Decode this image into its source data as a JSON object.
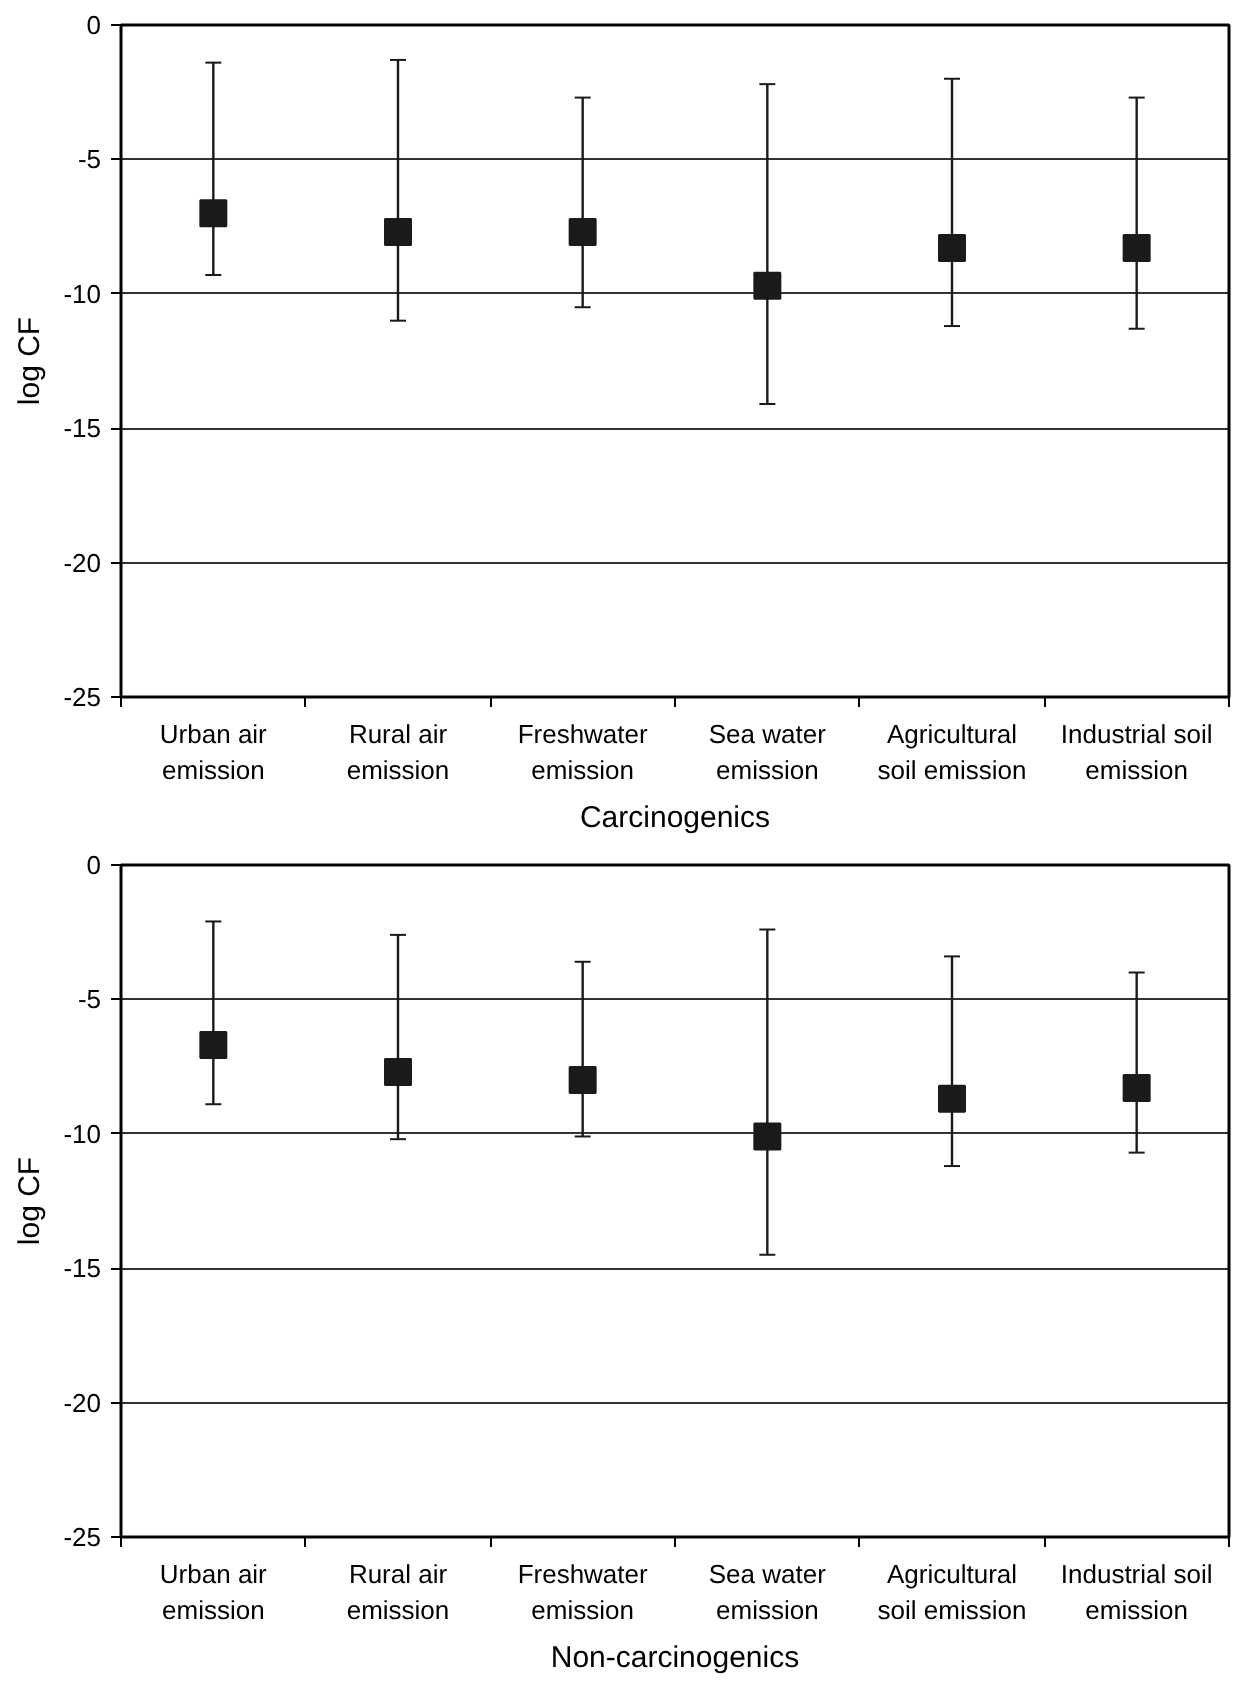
{
  "chart_data": [
    {
      "type": "scatter",
      "xlabel": "Carcinogenics",
      "ylabel": "log CF",
      "categories": [
        "Urban air emission",
        "Rural air emission",
        "Freshwater emission",
        "Sea water emission",
        "Agricultural soil emission",
        "Industrial soil emission"
      ],
      "series": [
        {
          "color": "#1a1a1a",
          "values": [
            -7.0,
            -7.7,
            -7.7,
            -9.7,
            -8.3,
            -8.3
          ],
          "errors": [
            [
              -9.3,
              -1.4
            ],
            [
              -11.0,
              -1.3
            ],
            [
              -10.5,
              -2.7
            ],
            [
              -14.1,
              -2.2
            ],
            [
              -11.2,
              -2.0
            ],
            [
              -11.3,
              -2.7
            ]
          ]
        }
      ],
      "ylim": [
        -25,
        0
      ],
      "yticks": [
        -25,
        -20,
        -15,
        -10,
        -5,
        0
      ],
      "grid": "y",
      "marker": "square"
    },
    {
      "type": "scatter",
      "xlabel": "Non-carcinogenics",
      "ylabel": "log CF",
      "categories": [
        "Urban air emission",
        "Rural air emission",
        "Freshwater emission",
        "Sea water emission",
        "Agricultural soil emission",
        "Industrial soil emission"
      ],
      "series": [
        {
          "color": "#1a1a1a",
          "values": [
            -6.7,
            -7.7,
            -8.0,
            -10.1,
            -8.7,
            -8.3
          ],
          "errors": [
            [
              -8.9,
              -2.1
            ],
            [
              -10.2,
              -2.6
            ],
            [
              -10.1,
              -3.6
            ],
            [
              -14.5,
              -2.4
            ],
            [
              -11.2,
              -3.4
            ],
            [
              -10.7,
              -4.0
            ]
          ]
        }
      ],
      "ylim": [
        -25,
        0
      ],
      "yticks": [
        -25,
        -20,
        -15,
        -10,
        -5,
        0
      ],
      "grid": "y",
      "marker": "square"
    }
  ]
}
